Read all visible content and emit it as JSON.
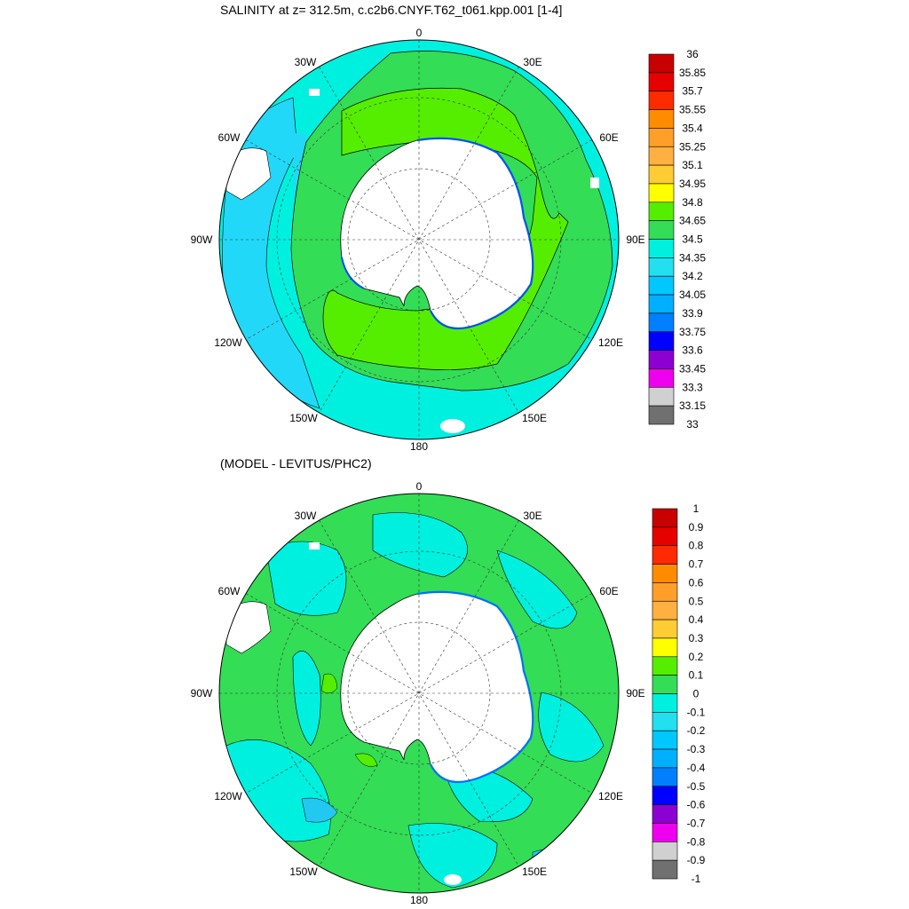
{
  "panels": [
    {
      "title": "SALINITY at z= 312.5m, c.c2b6.CNYF.T62_t061.kpp.001 [1-4]",
      "lon_labels": [
        "0",
        "30E",
        "60E",
        "90E",
        "120E",
        "150E",
        "180",
        "150W",
        "120W",
        "90W",
        "60W",
        "30W"
      ],
      "colorbar": {
        "levels": [
          "36",
          "35.85",
          "35.7",
          "35.55",
          "35.4",
          "35.25",
          "35.1",
          "34.95",
          "34.8",
          "34.65",
          "34.5",
          "34.35",
          "34.2",
          "34.05",
          "33.9",
          "33.75",
          "33.6",
          "33.45",
          "33.3",
          "33.15",
          "33"
        ],
        "colors": [
          "#c80000",
          "#e60000",
          "#ff2a00",
          "#ff8c00",
          "#ff9f2a",
          "#ffb040",
          "#ffcc33",
          "#ffff00",
          "#55ee00",
          "#33dd55",
          "#00f0e0",
          "#22e0f0",
          "#00c8ff",
          "#00b0ff",
          "#0080ff",
          "#0000ff",
          "#8c00d2",
          "#ee00ee",
          "#d0d0d0",
          "#707070"
        ]
      }
    },
    {
      "title": "(MODEL - LEVITUS/PHC2)",
      "lon_labels": [
        "0",
        "30E",
        "60E",
        "90E",
        "120E",
        "150E",
        "180",
        "150W",
        "120W",
        "90W",
        "60W",
        "30W"
      ],
      "colorbar": {
        "levels": [
          "1",
          "0.9",
          "0.8",
          "0.7",
          "0.6",
          "0.5",
          "0.4",
          "0.3",
          "0.2",
          "0.1",
          "0",
          "-0.1",
          "-0.2",
          "-0.3",
          "-0.4",
          "-0.5",
          "-0.6",
          "-0.7",
          "-0.8",
          "-0.9",
          "-1"
        ],
        "colors": [
          "#c80000",
          "#e60000",
          "#ff2a00",
          "#ff8c00",
          "#ff9f2a",
          "#ffb040",
          "#ffcc33",
          "#ffff00",
          "#55ee00",
          "#33dd55",
          "#00f0e0",
          "#22e0f0",
          "#00c8ff",
          "#00b0ff",
          "#0080ff",
          "#0000ff",
          "#8c00d2",
          "#ee00ee",
          "#d0d0d0",
          "#707070"
        ]
      }
    }
  ]
}
